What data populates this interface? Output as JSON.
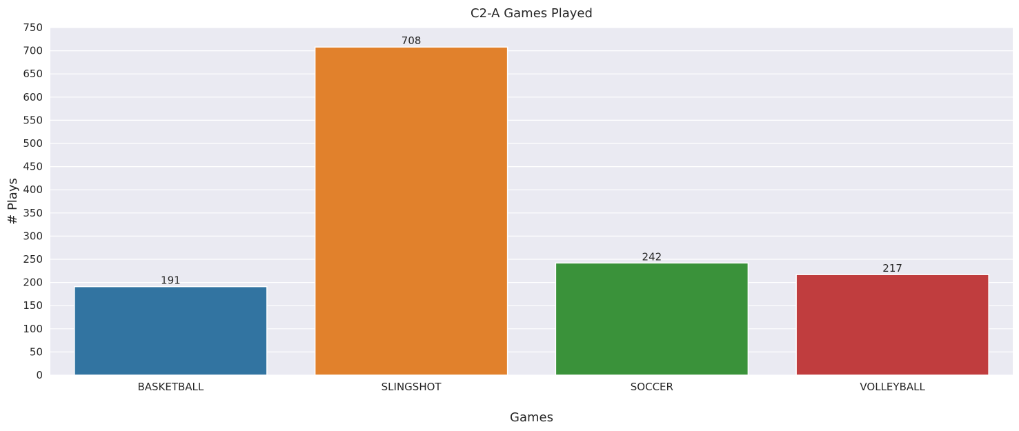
{
  "chart_data": {
    "type": "bar",
    "title": "C2-A Games Played",
    "xlabel": "Games",
    "ylabel": "# Plays",
    "categories": [
      "BASKETBALL",
      "SLINGSHOT",
      "SOCCER",
      "VOLLEYBALL"
    ],
    "values": [
      191,
      708,
      242,
      217
    ],
    "data_labels": [
      "191",
      "708",
      "242",
      "217"
    ],
    "colors": [
      "#3274a1",
      "#e1812c",
      "#3a923a",
      "#c03d3e"
    ],
    "ylim": [
      0,
      750
    ],
    "y_ticks": [
      0,
      50,
      100,
      150,
      200,
      250,
      300,
      350,
      400,
      450,
      500,
      550,
      600,
      650,
      700,
      750
    ],
    "grid": true,
    "legend": "none",
    "background_color": "#eaeaf2",
    "grid_color": "#ffffff"
  }
}
